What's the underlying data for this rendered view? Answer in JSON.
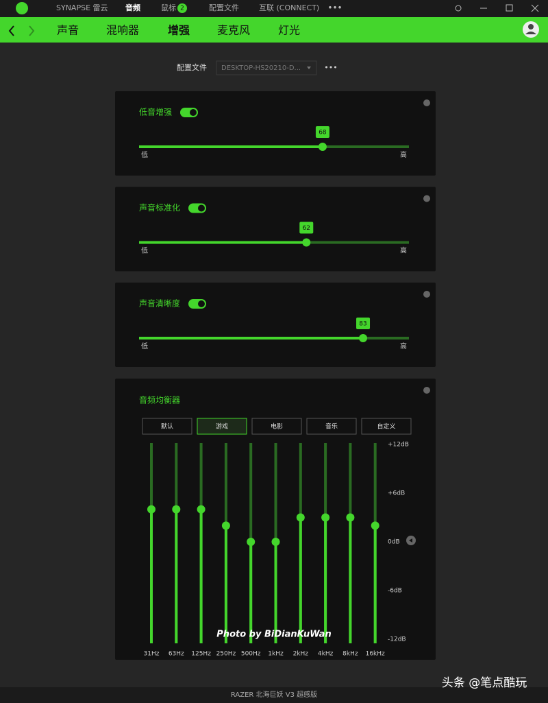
{
  "titlebar": {
    "tabs": [
      "SYNAPSE 雷云",
      "音频",
      "鼠标",
      "配置文件",
      "互联 (CONNECT)"
    ],
    "active": 1,
    "badge": 2
  },
  "nav": {
    "items": [
      "声音",
      "混响器",
      "增强",
      "麦克风",
      "灯光"
    ],
    "active": 2
  },
  "profile": {
    "label": "配置文件",
    "value": "DESKTOP-HS20210-D..."
  },
  "enhancements": [
    {
      "label": "低音增强",
      "enabled": true,
      "value": 68,
      "range": [
        0,
        100
      ],
      "low": "低",
      "high": "高"
    },
    {
      "label": "声音标准化",
      "enabled": true,
      "value": 62,
      "range": [
        0,
        100
      ],
      "low": "低",
      "high": "高"
    },
    {
      "label": "声音清晰度",
      "enabled": true,
      "value": 83,
      "range": [
        0,
        100
      ],
      "low": "低",
      "high": "高"
    }
  ],
  "equalizer": {
    "title": "音频均衡器",
    "presets": [
      "默认",
      "游戏",
      "电影",
      "音乐",
      "自定义"
    ],
    "active_preset": 1,
    "ylim": [
      -12,
      12
    ],
    "yticks": [
      {
        "value": 12,
        "label": "+12dB"
      },
      {
        "value": 6,
        "label": "+6dB"
      },
      {
        "value": 0,
        "label": "0dB"
      },
      {
        "value": -6,
        "label": "-6dB"
      },
      {
        "value": -12,
        "label": "-12dB"
      }
    ],
    "bands": [
      "31Hz",
      "63Hz",
      "125Hz",
      "250Hz",
      "500Hz",
      "1kHz",
      "2kHz",
      "4kHz",
      "8kHz",
      "16kHz"
    ],
    "gains": [
      4,
      4,
      4,
      2,
      0,
      0,
      3,
      3,
      3,
      2
    ]
  },
  "photo_credit": "Photo by BiDianKuWan",
  "footer": "RAZER 北海巨妖 V3 超感版",
  "watermark": "头条 @笔点酷玩"
}
